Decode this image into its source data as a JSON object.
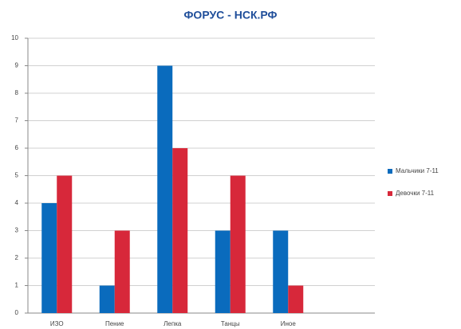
{
  "chart_data": {
    "type": "bar",
    "title": "ФОРУС - НСК.РФ",
    "categories": [
      "ИЗО",
      "Пение",
      "Лепка",
      "Танцы",
      "Иное",
      null
    ],
    "series": [
      {
        "name": "Мальчики 7-11",
        "color": "#0a6bbd",
        "values": [
          4,
          1,
          9,
          3,
          3,
          null
        ]
      },
      {
        "name": "Девочки 7-11",
        "color": "#d7283a",
        "values": [
          5,
          3,
          6,
          5,
          1,
          null
        ]
      }
    ],
    "ylim": [
      0,
      10
    ],
    "yticks": [
      0,
      1,
      2,
      3,
      4,
      5,
      6,
      7,
      8,
      9,
      10
    ],
    "grid": true,
    "legend": "right"
  }
}
